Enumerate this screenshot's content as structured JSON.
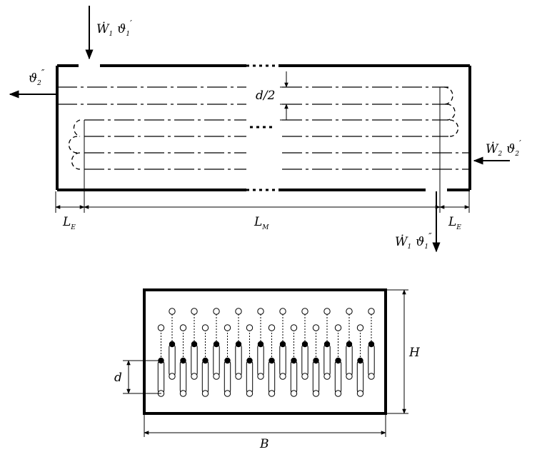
{
  "top_view": {
    "inlet_fluid1": {
      "symbol": "Ẇ",
      "sub": "1",
      "theta": "ϑ",
      "theta_sub": "1",
      "theta_prime": "′"
    },
    "outlet_fluid2": {
      "theta": "ϑ",
      "theta_sub": "2",
      "theta_prime": "″"
    },
    "inlet_fluid2": {
      "symbol": "Ẇ",
      "sub": "2",
      "theta": "ϑ",
      "theta_sub": "2",
      "theta_prime": "′"
    },
    "outlet_fluid1": {
      "symbol": "Ẇ",
      "sub": "1",
      "theta": "ϑ",
      "theta_sub": "1",
      "theta_prime": "″"
    },
    "half_pitch_label": "d/2",
    "dim_left_end": {
      "main": "L",
      "sub": "E"
    },
    "dim_middle": {
      "main": "L",
      "sub": "M"
    },
    "dim_right_end": {
      "main": "L",
      "sub": "E"
    }
  },
  "cross_section": {
    "pitch_label": "d",
    "height_label": "H",
    "width_label": "B",
    "tube_columns": 10
  }
}
